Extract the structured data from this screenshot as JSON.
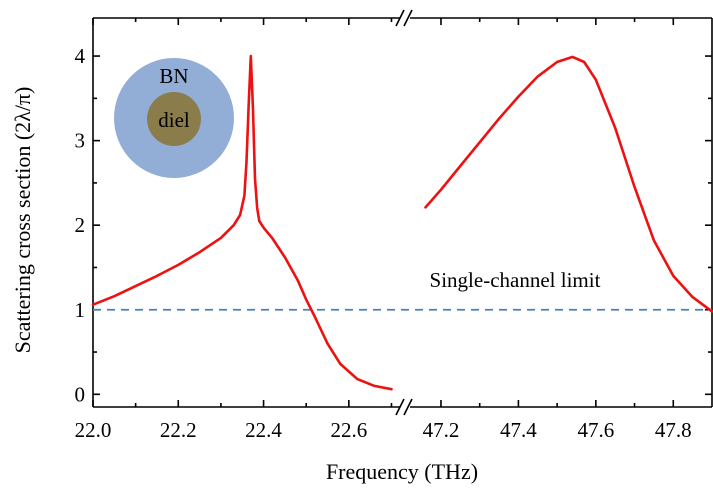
{
  "chart_data": {
    "type": "line",
    "xlabel": "Frequency (THz)",
    "ylabel": "Scattering cross section (2λ/π)",
    "ylim": [
      -0.15,
      4.45
    ],
    "y_ticks": [
      "0",
      "1",
      "2",
      "3",
      "4"
    ],
    "x_axis_broken": true,
    "x_segments": [
      {
        "range": [
          22.0,
          22.72
        ],
        "ticks": [
          {
            "value": 22.0,
            "label": "22.0"
          },
          {
            "value": 22.2,
            "label": "22.2"
          },
          {
            "value": 22.4,
            "label": "22.4"
          },
          {
            "value": 22.6,
            "label": "22.6"
          }
        ]
      },
      {
        "range": [
          47.12,
          47.9
        ],
        "ticks": [
          {
            "value": 47.2,
            "label": "47.2"
          },
          {
            "value": 47.4,
            "label": "47.4"
          },
          {
            "value": 47.6,
            "label": "47.6"
          },
          {
            "value": 47.8,
            "label": "47.8"
          }
        ]
      }
    ],
    "series": [
      {
        "segment": 0,
        "color": "#ee1111",
        "points": [
          [
            22.0,
            1.06
          ],
          [
            22.05,
            1.16
          ],
          [
            22.1,
            1.28
          ],
          [
            22.15,
            1.4
          ],
          [
            22.2,
            1.53
          ],
          [
            22.25,
            1.68
          ],
          [
            22.3,
            1.85
          ],
          [
            22.33,
            2.0
          ],
          [
            22.345,
            2.12
          ],
          [
            22.355,
            2.35
          ],
          [
            22.36,
            2.75
          ],
          [
            22.365,
            3.4
          ],
          [
            22.37,
            4.0
          ],
          [
            22.375,
            3.4
          ],
          [
            22.38,
            2.55
          ],
          [
            22.385,
            2.2
          ],
          [
            22.39,
            2.05
          ],
          [
            22.4,
            1.97
          ],
          [
            22.42,
            1.85
          ],
          [
            22.45,
            1.62
          ],
          [
            22.48,
            1.35
          ],
          [
            22.5,
            1.12
          ],
          [
            22.52,
            0.92
          ],
          [
            22.55,
            0.6
          ],
          [
            22.58,
            0.36
          ],
          [
            22.62,
            0.18
          ],
          [
            22.66,
            0.1
          ],
          [
            22.7,
            0.06
          ]
        ]
      },
      {
        "segment": 1,
        "color": "#ee1111",
        "points": [
          [
            47.16,
            2.21
          ],
          [
            47.2,
            2.42
          ],
          [
            47.25,
            2.7
          ],
          [
            47.3,
            2.98
          ],
          [
            47.35,
            3.26
          ],
          [
            47.4,
            3.52
          ],
          [
            47.45,
            3.76
          ],
          [
            47.5,
            3.93
          ],
          [
            47.54,
            3.99
          ],
          [
            47.57,
            3.93
          ],
          [
            47.6,
            3.72
          ],
          [
            47.65,
            3.15
          ],
          [
            47.7,
            2.45
          ],
          [
            47.75,
            1.82
          ],
          [
            47.8,
            1.4
          ],
          [
            47.85,
            1.15
          ],
          [
            47.9,
            0.98
          ]
        ]
      }
    ],
    "reference_line": {
      "y": 1.0,
      "label": "Single-channel limit",
      "color": "#4a7fb8"
    },
    "inset": {
      "outer_label": "BN",
      "inner_label": "diel",
      "outer_color": "#93aed6",
      "inner_color": "#8b7c4c"
    }
  }
}
